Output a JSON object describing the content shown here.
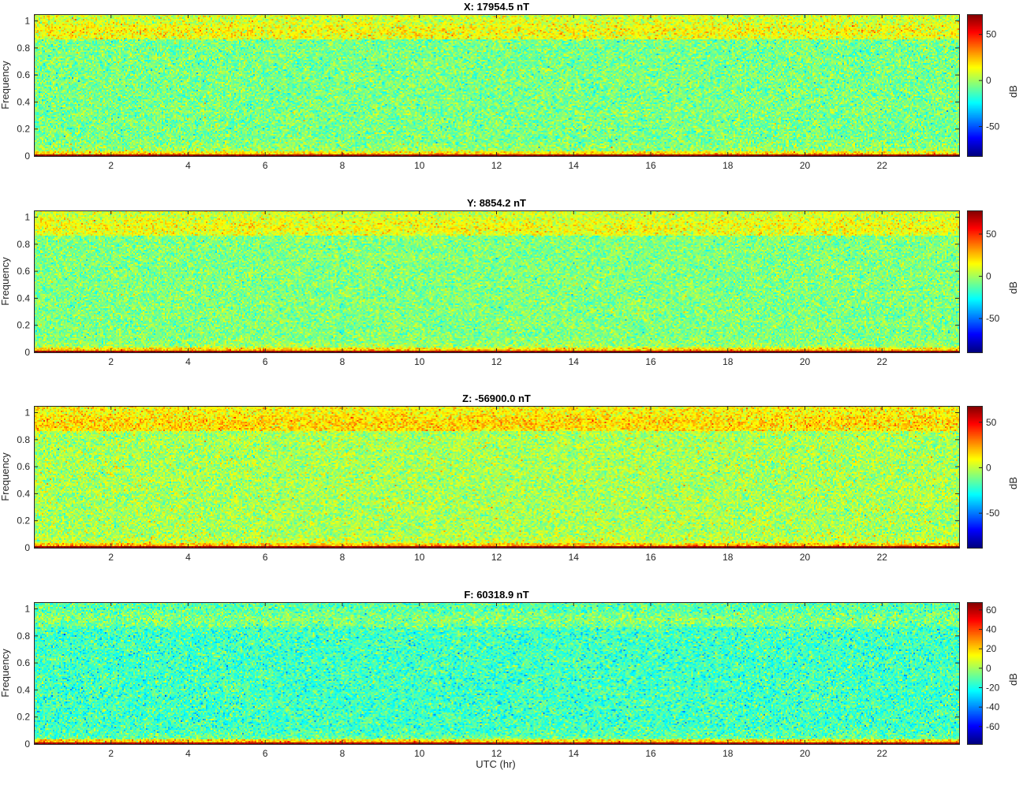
{
  "figure": {
    "xlabel": "UTC (hr)"
  },
  "colormap": "jet",
  "chart_data": [
    {
      "type": "heatmap",
      "title": "X: 17954.5 nT",
      "xlabel": "",
      "ylabel": "Frequency",
      "xlim": [
        0,
        24
      ],
      "ylim": [
        0,
        1.05
      ],
      "xticks": [
        2,
        4,
        6,
        8,
        10,
        12,
        14,
        16,
        18,
        20,
        22
      ],
      "yticks": [
        0,
        0.2,
        0.4,
        0.6,
        0.8,
        1
      ],
      "colorbar": {
        "label": "dB",
        "range": [
          -82,
          72
        ],
        "ticks": [
          -50,
          0,
          50
        ]
      },
      "spectrum_profile": {
        "dc_band": 70,
        "low_band": 25,
        "floor": -6,
        "high_band": 14
      }
    },
    {
      "type": "heatmap",
      "title": "Y: 8854.2 nT",
      "xlabel": "",
      "ylabel": "Frequency",
      "xlim": [
        0,
        24
      ],
      "ylim": [
        0,
        1.05
      ],
      "xticks": [
        2,
        4,
        6,
        8,
        10,
        12,
        14,
        16,
        18,
        20,
        22
      ],
      "yticks": [
        0,
        0.2,
        0.4,
        0.6,
        0.8,
        1
      ],
      "colorbar": {
        "label": "dB",
        "range": [
          -90,
          78
        ],
        "ticks": [
          -50,
          0,
          50
        ]
      },
      "spectrum_profile": {
        "dc_band": 75,
        "low_band": 28,
        "floor": -6,
        "high_band": 14
      }
    },
    {
      "type": "heatmap",
      "title": "Z: -56900.0 nT",
      "xlabel": "",
      "ylabel": "Frequency",
      "xlim": [
        0,
        24
      ],
      "ylim": [
        0,
        1.05
      ],
      "xticks": [
        2,
        4,
        6,
        8,
        10,
        12,
        14,
        16,
        18,
        20,
        22
      ],
      "yticks": [
        0,
        0.2,
        0.4,
        0.6,
        0.8,
        1
      ],
      "colorbar": {
        "label": "dB",
        "range": [
          -88,
          68
        ],
        "ticks": [
          -50,
          0,
          50
        ]
      },
      "spectrum_profile": {
        "dc_band": 65,
        "low_band": 25,
        "floor": -4,
        "high_band": 16
      }
    },
    {
      "type": "heatmap",
      "title": "F: 60318.9 nT",
      "xlabel": "UTC (hr)",
      "ylabel": "Frequency",
      "xlim": [
        0,
        24
      ],
      "ylim": [
        0,
        1.05
      ],
      "xticks": [
        2,
        4,
        6,
        8,
        10,
        12,
        14,
        16,
        18,
        20,
        22
      ],
      "yticks": [
        0,
        0.2,
        0.4,
        0.6,
        0.8,
        1
      ],
      "colorbar": {
        "label": "dB",
        "range": [
          -78,
          68
        ],
        "ticks": [
          -60,
          -40,
          -20,
          0,
          20,
          40,
          60
        ]
      },
      "spectrum_profile": {
        "dc_band": 62,
        "low_band": 25,
        "floor": -14,
        "high_band": -4
      }
    }
  ]
}
